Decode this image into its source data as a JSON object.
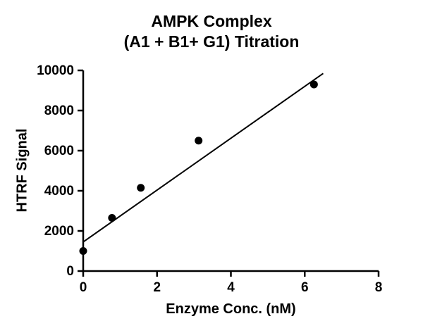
{
  "title": {
    "line1": "AMPK Complex",
    "line2": "(A1 + B1+ G1) Titration"
  },
  "chart_data": {
    "type": "scatter",
    "title": "AMPK Complex (A1 + B1+ G1) Titration",
    "xlabel": "Enzyme Conc. (nM)",
    "ylabel": "HTRF Signal",
    "xlim": [
      0,
      8
    ],
    "ylim": [
      0,
      10000
    ],
    "xticks": [
      0,
      2,
      4,
      6,
      8
    ],
    "yticks": [
      0,
      2000,
      4000,
      6000,
      8000,
      10000
    ],
    "grid": false,
    "legend": "none",
    "marker_color": "#000000",
    "line_color": "#000000",
    "axis_color": "#000000",
    "points": [
      {
        "x": 0,
        "y": 1000
      },
      {
        "x": 0.78,
        "y": 2650
      },
      {
        "x": 1.56,
        "y": 4150
      },
      {
        "x": 3.125,
        "y": 6500
      },
      {
        "x": 6.25,
        "y": 9300
      }
    ],
    "fit_line": {
      "x1": 0,
      "y1": 1450,
      "x2": 6.5,
      "y2": 9850
    }
  }
}
